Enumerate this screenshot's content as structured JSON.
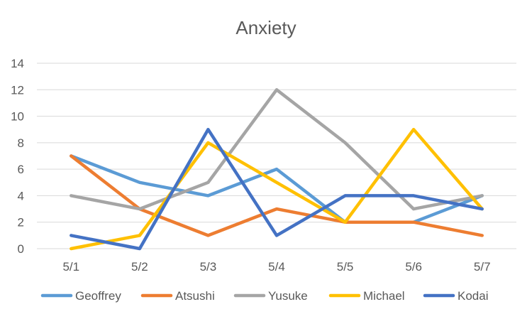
{
  "chart_data": {
    "type": "line",
    "title": "Anxiety",
    "xlabel": "",
    "ylabel": "",
    "categories": [
      "5/1",
      "5/2",
      "5/3",
      "5/4",
      "5/5",
      "5/6",
      "5/7"
    ],
    "ylim": [
      0,
      14
    ],
    "yticks": [
      0,
      2,
      4,
      6,
      8,
      10,
      12,
      14
    ],
    "grid": true,
    "legend_position": "bottom",
    "series": [
      {
        "name": "Geoffrey",
        "color": "#5b9bd5",
        "values": [
          7,
          5,
          4,
          6,
          2,
          2,
          4
        ]
      },
      {
        "name": "Atsushi",
        "color": "#ed7d31",
        "values": [
          7,
          3,
          1,
          3,
          2,
          2,
          1
        ]
      },
      {
        "name": "Yusuke",
        "color": "#a5a5a5",
        "values": [
          4,
          3,
          5,
          12,
          8,
          3,
          4
        ]
      },
      {
        "name": "Michael",
        "color": "#ffc000",
        "values": [
          0,
          1,
          8,
          5,
          2,
          9,
          3
        ]
      },
      {
        "name": "Kodai",
        "color": "#4472c4",
        "values": [
          1,
          0,
          9,
          1,
          4,
          4,
          3
        ]
      }
    ]
  }
}
